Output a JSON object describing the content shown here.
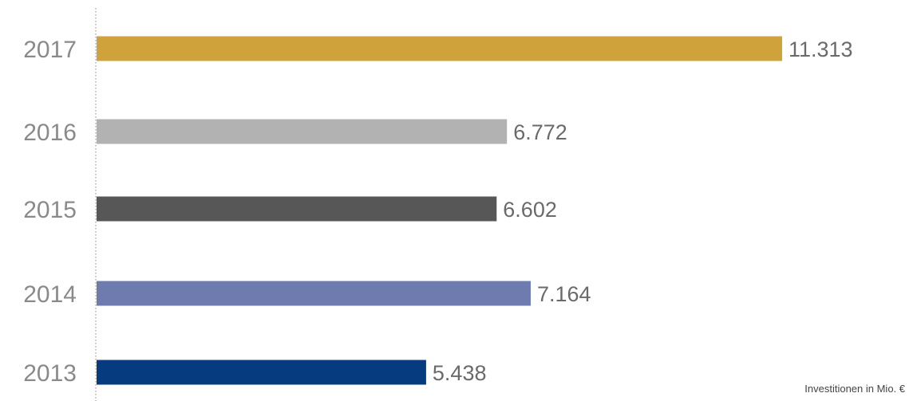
{
  "chart_data": {
    "type": "bar",
    "orientation": "horizontal",
    "categories": [
      "2017",
      "2016",
      "2015",
      "2014",
      "2013"
    ],
    "values": [
      11313,
      6772,
      6602,
      7164,
      5438
    ],
    "value_labels": [
      "11.313",
      "6.772",
      "6.602",
      "7.164",
      "5.438"
    ],
    "colors": [
      "#cfa23b",
      "#b2b2b2",
      "#575757",
      "#6d7bae",
      "#073b80"
    ],
    "title": "",
    "xlabel": "",
    "ylabel": "",
    "xlim": [
      0,
      11313
    ],
    "grid": false,
    "legend": "none"
  },
  "footnote": "Investitionen in Mio. €"
}
